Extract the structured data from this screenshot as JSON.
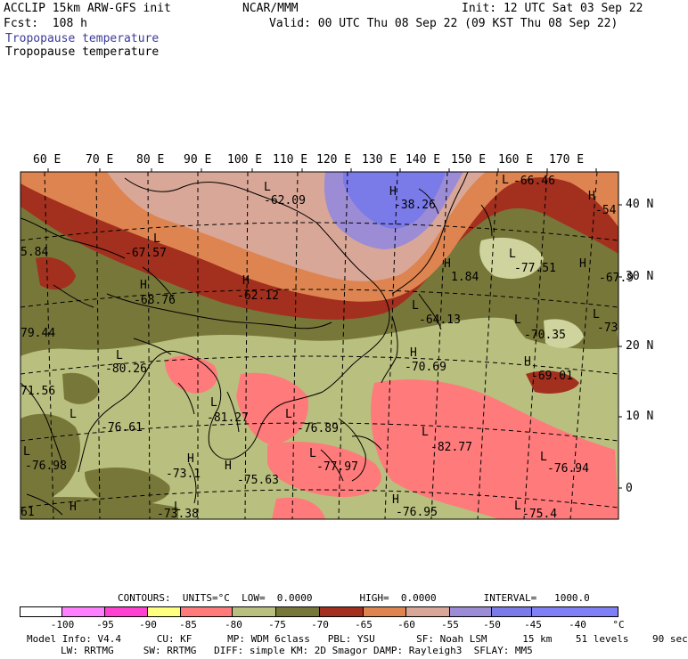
{
  "header": {
    "title": "ACCLIP 15km ARW-GFS init",
    "center": "NCAR/MMM",
    "init": "Init: 12 UTC Sat 03 Sep 22",
    "forecast": "Fcst:  108 h",
    "valid": "Valid: 00 UTC Thu 08 Sep 22 (09 KST Thu 08 Sep 22)",
    "field_shaded": "Tropopause temperature",
    "field_contour": "Tropopause temperature"
  },
  "map": {
    "lon_labels": [
      "60 E",
      "70 E",
      "80 E",
      "90 E",
      "100 E",
      "110 E",
      "120 E",
      "130 E",
      "140 E",
      "150 E",
      "160 E",
      "170 E"
    ],
    "lat_labels": [
      "40 N",
      "30 N",
      "20 N",
      "10 N",
      "0"
    ],
    "annotations": [
      {
        "marker": "L",
        "value": "-67.57"
      },
      {
        "marker": "H",
        "value": "-68.76"
      },
      {
        "marker": "L",
        "value": "-80.26"
      },
      {
        "marker": "L",
        "value": "-76.61"
      },
      {
        "marker": "L",
        "value": "-81.27"
      },
      {
        "marker": "L",
        "value": "-76.89"
      },
      {
        "marker": "H",
        "value": "-75.63"
      },
      {
        "marker": "L",
        "value": "-77.97"
      },
      {
        "marker": "L",
        "value": "-82.77"
      },
      {
        "marker": "L",
        "value": "-76.94"
      },
      {
        "marker": "H",
        "value": "-76.95"
      },
      {
        "marker": "H",
        "value": "-70.69"
      },
      {
        "marker": "H",
        "value": "-69.01"
      },
      {
        "marker": "L",
        "value": "-70.35"
      },
      {
        "marker": "L",
        "value": "-77.51"
      },
      {
        "marker": "H",
        "value": "-67.9"
      },
      {
        "marker": "L",
        "value": "-73"
      },
      {
        "marker": "H",
        "value": "-62.12"
      },
      {
        "marker": "L",
        "value": "-62.09"
      },
      {
        "marker": "H",
        "value": "-38.26"
      },
      {
        "marker": "L",
        "value": "-66.46"
      },
      {
        "marker": "H",
        "value": "-54"
      },
      {
        "marker": "L",
        "value": "-64.13"
      },
      {
        "marker": "H",
        "value": "1.84"
      },
      {
        "marker": "",
        "value": "5.84"
      },
      {
        "marker": "",
        "value": "79.44"
      },
      {
        "marker": "",
        "value": "71.56"
      },
      {
        "marker": "L",
        "value": "-76.98"
      },
      {
        "marker": "H",
        "value": "-73.1"
      },
      {
        "marker": "L",
        "value": "-73.38"
      },
      {
        "marker": "",
        "value": "61"
      },
      {
        "marker": "H",
        "value": ""
      },
      {
        "marker": "L",
        "value": "-75.4"
      }
    ]
  },
  "footer": {
    "contours": "CONTOURS:  UNITS=°C  LOW=  0.0000        HIGH=  0.0000        INTERVAL=   1000.0",
    "colorbar_labels": [
      "-100",
      "-95",
      "-90",
      "-85",
      "-80",
      "-75",
      "-70",
      "-65",
      "-60",
      "-55",
      "-50",
      "-45",
      "-40",
      "°C"
    ],
    "colorbar_colors": [
      "#ffffff",
      "#ff80ff",
      "#ff40d0",
      "#ffff80",
      "#ff7a7a",
      "#b9bf7e",
      "#77773a",
      "#a32f1e",
      "#dd8450",
      "#d9a797",
      "#9c8cd6",
      "#7a7ae8",
      "#7f7ff6"
    ],
    "model_info_1": "Model Info: V4.4      CU: KF      MP: WDM 6class   PBL: YSU       SF: Noah LSM      15 km    51 levels    90 sec",
    "model_info_2": "LW: RRTMG     SW: RRTMG   DIFF: simple KM: 2D Smagor DAMP: Rayleigh3  SFLAY: MM5"
  }
}
